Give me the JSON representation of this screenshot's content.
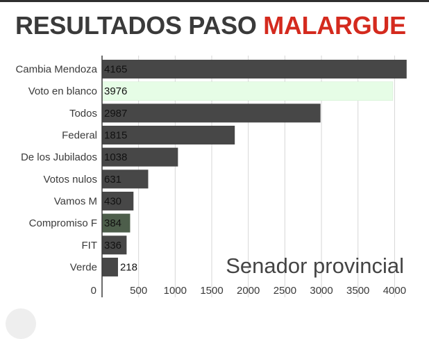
{
  "title": {
    "prefix": "RESULTADOS PASO",
    "accent": "MALARGUE"
  },
  "colors": {
    "bar": "#474747",
    "highlight_light": "#e6fde6",
    "highlight_dark": "#4d5e4b",
    "accent": "#d42a1e"
  },
  "chart_data": {
    "type": "bar",
    "orientation": "horizontal",
    "title": "RESULTADOS PASO MALARGUE",
    "annotation": "Senador provincial",
    "categories": [
      "Cambia Mendoza",
      "Voto en blanco",
      "Todos",
      "Federal",
      "De los Jubilados",
      "Votos nulos",
      "Vamos M",
      "Compromiso F",
      "FIT",
      "Verde"
    ],
    "values": [
      4165,
      3976,
      2987,
      1815,
      1038,
      631,
      430,
      384,
      336,
      218
    ],
    "bar_colors": [
      "#474747",
      "#e6fde6",
      "#474747",
      "#474747",
      "#474747",
      "#474747",
      "#474747",
      "#4d5e4b",
      "#474747",
      "#474747"
    ],
    "xticks": [
      0,
      500,
      1000,
      1500,
      2000,
      2500,
      3000,
      3500,
      4000
    ],
    "xlim": [
      0,
      4200
    ],
    "grid": true,
    "xlabel": "",
    "ylabel": ""
  }
}
